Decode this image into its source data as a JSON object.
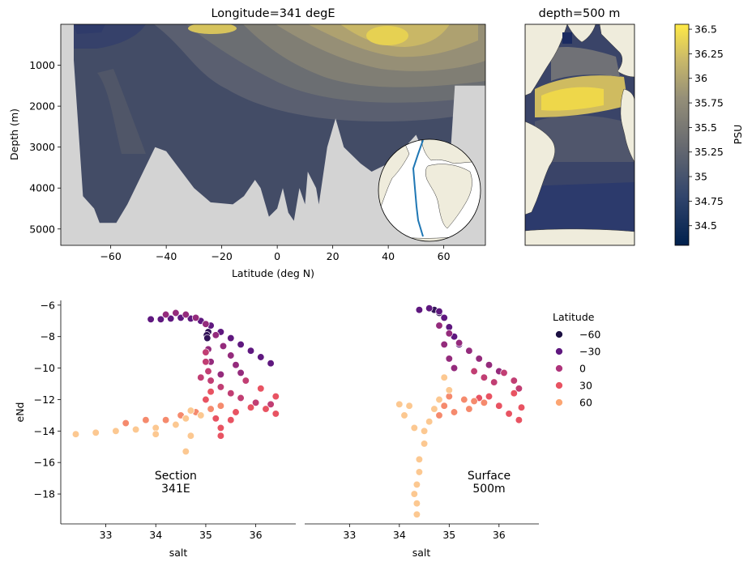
{
  "chart_data": [
    {
      "id": "section",
      "type": "heatmap",
      "title": "Longitude=341 degE",
      "xlabel": "Latitude (deg N)",
      "ylabel": "Depth (m)",
      "xlim": [
        -78,
        75
      ],
      "ylim": [
        5400,
        0
      ],
      "xticks": [
        -60,
        -40,
        -20,
        0,
        20,
        40,
        60
      ],
      "yticks": [
        1000,
        2000,
        3000,
        4000,
        5000
      ],
      "xtick_labels": [
        "−60",
        "−40",
        "−20",
        "0",
        "20",
        "40",
        "60"
      ],
      "ytick_labels": [
        "1000",
        "2000",
        "3000",
        "4000",
        "5000"
      ],
      "field": "salinity (PSU)",
      "bathymetry_depth_m": [
        [
          -78,
          5400
        ],
        [
          -74,
          200
        ],
        [
          -70,
          4200
        ],
        [
          -66,
          4500
        ],
        [
          -64,
          4850
        ],
        [
          -58,
          4850
        ],
        [
          -54,
          4400
        ],
        [
          -44,
          3000
        ],
        [
          -40,
          3100
        ],
        [
          -30,
          4000
        ],
        [
          -24,
          4350
        ],
        [
          -16,
          4400
        ],
        [
          -12,
          4200
        ],
        [
          -8,
          3800
        ],
        [
          -6,
          4000
        ],
        [
          -3,
          4700
        ],
        [
          0,
          4500
        ],
        [
          2,
          4000
        ],
        [
          4,
          4600
        ],
        [
          6,
          4800
        ],
        [
          8,
          4000
        ],
        [
          10,
          4400
        ],
        [
          11,
          3600
        ],
        [
          14,
          4000
        ],
        [
          15,
          4400
        ],
        [
          18,
          3000
        ],
        [
          21,
          2300
        ],
        [
          24,
          3000
        ],
        [
          30,
          3400
        ],
        [
          34,
          3600
        ],
        [
          40,
          3400
        ],
        [
          46,
          3000
        ],
        [
          50,
          2700
        ],
        [
          52,
          3000
        ],
        [
          56,
          3400
        ],
        [
          60,
          3700
        ],
        [
          62,
          3600
        ],
        [
          64,
          1500
        ],
        [
          75,
          1500
        ],
        [
          75,
          5400
        ]
      ]
    },
    {
      "id": "map500",
      "type": "heatmap",
      "title": "depth=500 m",
      "field": "salinity (PSU) at 500 m"
    },
    {
      "id": "colorbar",
      "type": "colorbar",
      "label": "PSU",
      "range": [
        34.3,
        36.55
      ],
      "ticks": [
        34.5,
        34.75,
        35,
        35.25,
        35.5,
        35.75,
        36,
        36.25,
        36.5
      ],
      "tick_labels": [
        "34.5",
        "34.75",
        "35",
        "35.25",
        "35.5",
        "35.75",
        "36",
        "36.25",
        "36.5"
      ],
      "stops": [
        [
          34.3,
          "#00204d"
        ],
        [
          34.8,
          "#31456c"
        ],
        [
          35.3,
          "#666970"
        ],
        [
          35.8,
          "#958f78"
        ],
        [
          36.2,
          "#cbba69"
        ],
        [
          36.55,
          "#ffea46"
        ]
      ]
    },
    {
      "id": "scatter-section",
      "type": "scatter",
      "xlabel": "salt",
      "ylabel": "eNd",
      "xlim": [
        32.1,
        36.8
      ],
      "ylim": [
        -19.9,
        -5.7
      ],
      "xticks": [
        33,
        34,
        35,
        36
      ],
      "yticks": [
        -6,
        -8,
        -10,
        -12,
        -14,
        -16,
        -18
      ],
      "xtick_labels": [
        "33",
        "34",
        "35",
        "36"
      ],
      "ytick_labels": [
        "−6",
        "−8",
        "−10",
        "−12",
        "−14",
        "−16",
        "−18"
      ],
      "annotation": "Section\n341E",
      "annotation_at": [
        34.4,
        -17.8
      ],
      "series": [
        {
          "lat": -60,
          "points": [
            [
              35.05,
              -7.7
            ],
            [
              35.02,
              -7.9
            ],
            [
              35.03,
              -8.1
            ]
          ]
        },
        {
          "lat": -40,
          "points": [
            [
              33.9,
              -6.9
            ],
            [
              34.1,
              -6.9
            ],
            [
              34.3,
              -6.85
            ],
            [
              34.5,
              -6.8
            ],
            [
              34.7,
              -6.85
            ],
            [
              34.9,
              -7.0
            ],
            [
              35.1,
              -7.3
            ],
            [
              35.3,
              -7.7
            ],
            [
              35.5,
              -8.1
            ],
            [
              35.7,
              -8.5
            ],
            [
              35.9,
              -8.9
            ],
            [
              36.1,
              -9.3
            ],
            [
              36.3,
              -9.7
            ]
          ]
        },
        {
          "lat": -20,
          "points": [
            [
              34.2,
              -6.6
            ],
            [
              34.4,
              -6.5
            ],
            [
              34.6,
              -6.6
            ],
            [
              34.8,
              -6.8
            ],
            [
              35.0,
              -7.2
            ],
            [
              35.2,
              -7.9
            ],
            [
              35.35,
              -8.6
            ],
            [
              35.5,
              -9.2
            ],
            [
              35.6,
              -9.8
            ],
            [
              35.7,
              -10.3
            ],
            [
              35.05,
              -8.8
            ],
            [
              35.1,
              -9.6
            ],
            [
              35.3,
              -10.4
            ]
          ]
        },
        {
          "lat": 0,
          "points": [
            [
              35.0,
              -9.0
            ],
            [
              35.0,
              -9.6
            ],
            [
              35.05,
              -10.2
            ],
            [
              35.1,
              -10.8
            ],
            [
              34.9,
              -10.6
            ],
            [
              35.3,
              -11.2
            ],
            [
              35.5,
              -11.6
            ],
            [
              35.7,
              -11.9
            ],
            [
              36.0,
              -12.2
            ],
            [
              36.3,
              -12.3
            ],
            [
              35.8,
              -10.8
            ]
          ]
        },
        {
          "lat": 20,
          "points": [
            [
              35.1,
              -11.5
            ],
            [
              35.0,
              -12.0
            ],
            [
              35.1,
              -12.6
            ],
            [
              35.2,
              -13.2
            ],
            [
              35.3,
              -13.8
            ],
            [
              35.3,
              -14.3
            ],
            [
              35.6,
              -12.8
            ],
            [
              35.9,
              -12.5
            ],
            [
              36.2,
              -12.6
            ],
            [
              36.4,
              -11.8
            ],
            [
              35.5,
              -13.3
            ],
            [
              36.1,
              -11.3
            ],
            [
              36.4,
              -12.9
            ]
          ]
        },
        {
          "lat": 40,
          "points": [
            [
              34.2,
              -13.3
            ],
            [
              34.5,
              -13.0
            ],
            [
              34.8,
              -12.8
            ],
            [
              35.1,
              -12.6
            ],
            [
              35.3,
              -12.4
            ],
            [
              33.4,
              -13.5
            ],
            [
              33.8,
              -13.3
            ]
          ]
        },
        {
          "lat": 60,
          "points": [
            [
              32.4,
              -14.2
            ],
            [
              32.8,
              -14.1
            ],
            [
              33.2,
              -14.0
            ],
            [
              33.6,
              -13.9
            ],
            [
              34.0,
              -13.8
            ],
            [
              34.4,
              -13.6
            ],
            [
              34.6,
              -13.2
            ],
            [
              34.7,
              -14.3
            ],
            [
              34.6,
              -15.3
            ],
            [
              34.0,
              -14.2
            ],
            [
              34.7,
              -12.7
            ],
            [
              34.9,
              -13.0
            ]
          ]
        }
      ]
    },
    {
      "id": "scatter-surface",
      "type": "scatter",
      "xlabel": "salt",
      "xlim": [
        32.1,
        36.8
      ],
      "ylim": [
        -19.9,
        -5.7
      ],
      "xticks": [
        33,
        34,
        35,
        36
      ],
      "xtick_labels": [
        "33",
        "34",
        "35",
        "36"
      ],
      "annotation": "Surface\n500m",
      "annotation_at": [
        35.8,
        -17.8
      ],
      "series": [
        {
          "lat": -60,
          "points": [
            [
              34.7,
              -6.3
            ],
            [
              34.8,
              -6.5
            ]
          ]
        },
        {
          "lat": -40,
          "points": [
            [
              34.4,
              -6.3
            ],
            [
              34.6,
              -6.2
            ],
            [
              34.8,
              -6.4
            ],
            [
              34.9,
              -6.8
            ],
            [
              35.0,
              -7.4
            ],
            [
              35.1,
              -8.0
            ],
            [
              35.2,
              -8.5
            ]
          ]
        },
        {
          "lat": -20,
          "points": [
            [
              34.8,
              -7.3
            ],
            [
              35.0,
              -7.8
            ],
            [
              35.2,
              -8.4
            ],
            [
              35.4,
              -8.9
            ],
            [
              35.6,
              -9.4
            ],
            [
              35.8,
              -9.8
            ],
            [
              36.0,
              -10.2
            ],
            [
              34.9,
              -8.5
            ],
            [
              35.0,
              -9.4
            ],
            [
              35.1,
              -10.0
            ]
          ]
        },
        {
          "lat": 0,
          "points": [
            [
              36.1,
              -10.3
            ],
            [
              36.3,
              -10.8
            ],
            [
              36.4,
              -11.3
            ],
            [
              35.7,
              -10.6
            ],
            [
              35.9,
              -10.9
            ],
            [
              35.5,
              -10.2
            ]
          ]
        },
        {
          "lat": 20,
          "points": [
            [
              35.8,
              -11.8
            ],
            [
              36.0,
              -12.4
            ],
            [
              36.2,
              -12.9
            ],
            [
              36.4,
              -13.3
            ],
            [
              36.3,
              -11.6
            ],
            [
              35.6,
              -11.9
            ],
            [
              36.45,
              -12.5
            ]
          ]
        },
        {
          "lat": 40,
          "points": [
            [
              35.0,
              -11.8
            ],
            [
              35.3,
              -12.0
            ],
            [
              35.5,
              -12.1
            ],
            [
              35.7,
              -12.2
            ],
            [
              34.9,
              -12.4
            ],
            [
              35.1,
              -12.8
            ],
            [
              35.4,
              -12.6
            ],
            [
              34.8,
              -13.0
            ]
          ]
        },
        {
          "lat": 60,
          "points": [
            [
              34.9,
              -10.6
            ],
            [
              35.0,
              -11.4
            ],
            [
              34.8,
              -12.0
            ],
            [
              34.7,
              -12.6
            ],
            [
              34.6,
              -13.4
            ],
            [
              34.5,
              -14.0
            ],
            [
              34.5,
              -14.8
            ],
            [
              34.4,
              -15.8
            ],
            [
              34.4,
              -16.6
            ],
            [
              34.35,
              -17.4
            ],
            [
              34.3,
              -18.0
            ],
            [
              34.35,
              -18.6
            ],
            [
              34.35,
              -19.3
            ],
            [
              34.2,
              -12.4
            ],
            [
              34.1,
              -13.0
            ],
            [
              34.3,
              -13.8
            ],
            [
              34.0,
              -12.3
            ]
          ]
        }
      ]
    }
  ],
  "legend": {
    "title": "Latitude",
    "entries": [
      {
        "label": "−60",
        "color": "#1c1042"
      },
      {
        "label": "−30",
        "color": "#5f187f"
      },
      {
        "label": "0",
        "color": "#ae347b"
      },
      {
        "label": "30",
        "color": "#e85362"
      },
      {
        "label": "60",
        "color": "#fca572"
      }
    ]
  },
  "colors": {
    "land": "#efecdc",
    "bathymetry": "#d3d3d3",
    "section_line": "#1f77b4"
  }
}
